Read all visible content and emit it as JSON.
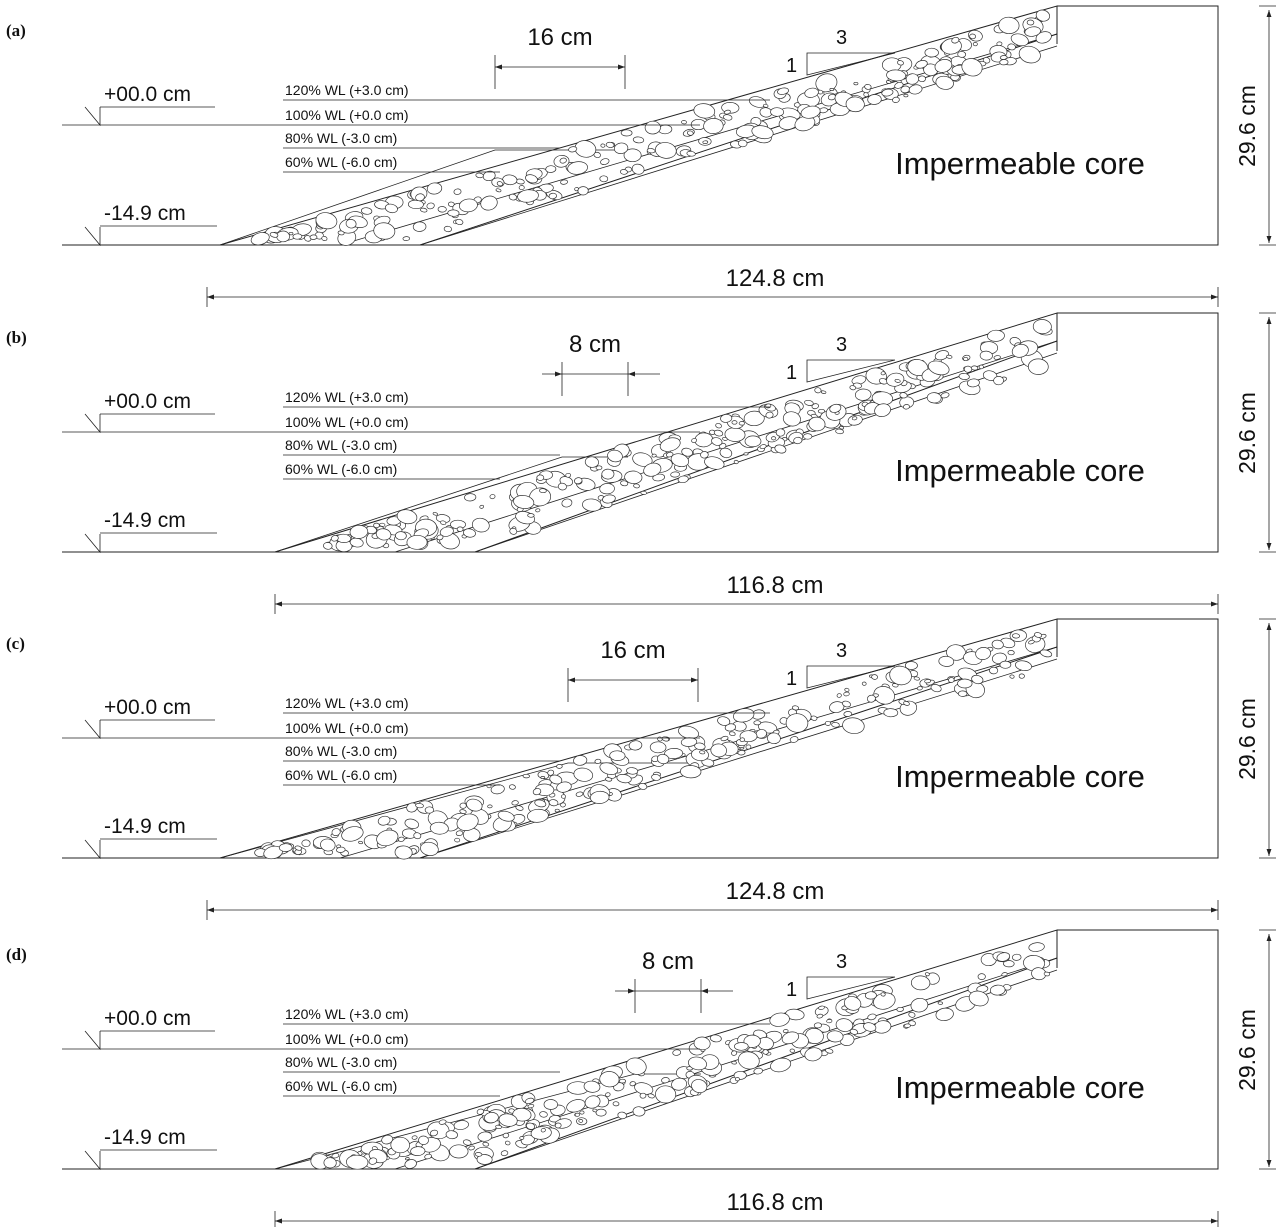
{
  "panels": [
    {
      "id": "a",
      "label": "(a)",
      "berm_width": "16 cm",
      "total_length": "124.8 cm",
      "height": "29.6 cm",
      "core_label": "Impermeable core",
      "top_level": "+00.0 cm",
      "bottom_level": "-14.9 cm",
      "slope_v": "1",
      "slope_h": "3",
      "water_levels": [
        "120% WL (+3.0 cm)",
        "100% WL (+0.0 cm)",
        "80% WL (-3.0 cm)",
        "60% WL (-6.0 cm)"
      ]
    },
    {
      "id": "b",
      "label": "(b)",
      "berm_width": "8 cm",
      "total_length": "116.8 cm",
      "height": "29.6 cm",
      "core_label": "Impermeable core",
      "top_level": "+00.0 cm",
      "bottom_level": "-14.9 cm",
      "slope_v": "1",
      "slope_h": "3",
      "water_levels": [
        "120% WL (+3.0 cm)",
        "100% WL (+0.0 cm)",
        "80% WL (-3.0 cm)",
        "60% WL (-6.0 cm)"
      ]
    },
    {
      "id": "c",
      "label": "(c)",
      "berm_width": "16 cm",
      "total_length": "124.8 cm",
      "height": "29.6 cm",
      "core_label": "Impermeable core",
      "top_level": "+00.0 cm",
      "bottom_level": "-14.9 cm",
      "slope_v": "1",
      "slope_h": "3",
      "water_levels": [
        "120% WL (+3.0 cm)",
        "100% WL (+0.0 cm)",
        "80% WL (-3.0 cm)",
        "60% WL (-6.0 cm)"
      ]
    },
    {
      "id": "d",
      "label": "(d)",
      "berm_width": "8 cm",
      "total_length": "116.8 cm",
      "height": "29.6 cm",
      "core_label": "Impermeable core",
      "top_level": "+00.0 cm",
      "bottom_level": "-14.9 cm",
      "slope_v": "1",
      "slope_h": "3",
      "water_levels": [
        "120% WL (+3.0 cm)",
        "100% WL (+0.0 cm)",
        "80% WL (-3.0 cm)",
        "60% WL (-6.0 cm)"
      ]
    }
  ]
}
